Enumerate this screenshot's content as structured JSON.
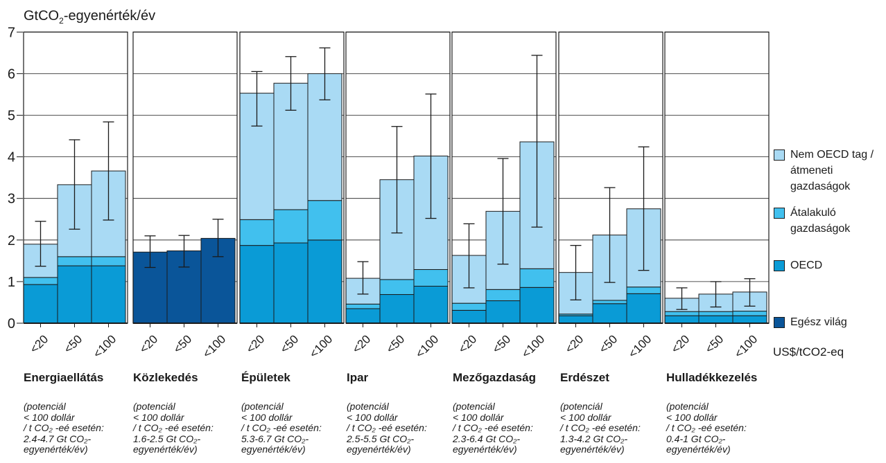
{
  "chart_data": {
    "type": "bar",
    "stacked": true,
    "y_axis_title": "GtCO₂-egyenérték/év",
    "ylim": [
      0,
      7
    ],
    "y_ticks": [
      0,
      1,
      2,
      3,
      4,
      5,
      6,
      7
    ],
    "x_unit_label": "US$/tCO2-eq",
    "categories": [
      "<20",
      "<50",
      "<100"
    ],
    "grid": true,
    "legend_position": "right",
    "legend": [
      {
        "key": "nonoecd",
        "label": "Nem OECD tag / átmeneti gazdaságok",
        "color": "#a9daf4"
      },
      {
        "key": "eit",
        "label": "Átalakuló gazdaságok",
        "color": "#41c0ee"
      },
      {
        "key": "oecd",
        "label": "OECD",
        "color": "#0a9bd6"
      },
      {
        "key": "world",
        "label": "Egész világ",
        "color": "#0a5599"
      }
    ],
    "sectors": [
      {
        "name": "Energiaellátás",
        "note": "(potenciál\n< 100 dollár\n/ t CO₂ -eé esetén:\n2.4-4.7 Gt CO₂-\negyenérték/év)",
        "bars": [
          {
            "category": "<20",
            "oecd": 0.93,
            "eit": 0.17,
            "nonoecd": 0.8,
            "err": [
              1.37,
              2.45
            ]
          },
          {
            "category": "<50",
            "oecd": 1.38,
            "eit": 0.22,
            "nonoecd": 1.73,
            "err": [
              2.26,
              4.41
            ]
          },
          {
            "category": "<100",
            "oecd": 1.38,
            "eit": 0.22,
            "nonoecd": 2.06,
            "err": [
              2.48,
              4.84
            ]
          }
        ]
      },
      {
        "name": "Közlekedés",
        "note": "(potenciál\n< 100 dollár\n/ t CO₂ -eé esetén:\n1.6-2.5 Gt CO₂-\negyenérték/év)",
        "bars": [
          {
            "category": "<20",
            "world": 1.71,
            "err": [
              1.34,
              2.1
            ]
          },
          {
            "category": "<50",
            "world": 1.74,
            "err": [
              1.35,
              2.11
            ]
          },
          {
            "category": "<100",
            "world": 2.04,
            "err": [
              1.6,
              2.5
            ]
          }
        ]
      },
      {
        "name": "Épületek",
        "note": "(potenciál\n< 100 dollár\n/ t CO₂ -eé esetén:\n5.3-6.7 Gt CO₂-\negyenérték/év)",
        "bars": [
          {
            "category": "<20",
            "oecd": 1.87,
            "eit": 0.62,
            "nonoecd": 3.04,
            "err": [
              4.74,
              6.05
            ]
          },
          {
            "category": "<50",
            "oecd": 1.93,
            "eit": 0.8,
            "nonoecd": 3.04,
            "err": [
              5.12,
              6.41
            ]
          },
          {
            "category": "<100",
            "oecd": 2.0,
            "eit": 0.95,
            "nonoecd": 3.05,
            "err": [
              5.37,
              6.62
            ]
          }
        ]
      },
      {
        "name": "Ipar",
        "note": "(potenciál\n< 100 dollár\n/ t CO₂ -eé esetén:\n2.5-5.5 Gt CO₂-\negyenérték/év)",
        "bars": [
          {
            "category": "<20",
            "oecd": 0.35,
            "eit": 0.11,
            "nonoecd": 0.62,
            "err": [
              0.7,
              1.48
            ]
          },
          {
            "category": "<50",
            "oecd": 0.69,
            "eit": 0.36,
            "nonoecd": 2.4,
            "err": [
              2.17,
              4.73
            ]
          },
          {
            "category": "<100",
            "oecd": 0.89,
            "eit": 0.4,
            "nonoecd": 2.73,
            "err": [
              2.52,
              5.51
            ]
          }
        ]
      },
      {
        "name": "Mezőgazdaság",
        "note": "(potenciál\n< 100 dollár\n/ t CO₂ -eé esetén:\n2.3-6.4 Gt CO₂-\negyenérték/év)",
        "bars": [
          {
            "category": "<20",
            "oecd": 0.31,
            "eit": 0.17,
            "nonoecd": 1.15,
            "err": [
              0.85,
              2.39
            ]
          },
          {
            "category": "<50",
            "oecd": 0.54,
            "eit": 0.27,
            "nonoecd": 1.88,
            "err": [
              1.42,
              3.96
            ]
          },
          {
            "category": "<100",
            "oecd": 0.86,
            "eit": 0.45,
            "nonoecd": 3.05,
            "err": [
              2.31,
              6.44
            ]
          }
        ]
      },
      {
        "name": "Erdészet",
        "note": "(potenciál\n< 100 dollár\n/ t CO₂ -eé esetén:\n1.3-4.2 Gt CO₂-\negyenérték/év)",
        "bars": [
          {
            "category": "<20",
            "oecd": 0.18,
            "eit": 0.04,
            "nonoecd": 1.0,
            "err": [
              0.56,
              1.87
            ]
          },
          {
            "category": "<50",
            "oecd": 0.47,
            "eit": 0.08,
            "nonoecd": 1.57,
            "err": [
              0.98,
              3.26
            ]
          },
          {
            "category": "<100",
            "oecd": 0.71,
            "eit": 0.16,
            "nonoecd": 1.88,
            "err": [
              1.27,
              4.24
            ]
          }
        ]
      },
      {
        "name": "Hulladékkezelés",
        "note": "(potenciál\n< 100 dollár\n/ t CO₂ -eé esetén:\n0.4-1 Gt CO₂-\negyenérték/év)",
        "bars": [
          {
            "category": "<20",
            "oecd": 0.18,
            "eit": 0.1,
            "nonoecd": 0.32,
            "err": [
              0.33,
              0.85
            ]
          },
          {
            "category": "<50",
            "oecd": 0.18,
            "eit": 0.1,
            "nonoecd": 0.42,
            "err": [
              0.39,
              1.0
            ]
          },
          {
            "category": "<100",
            "oecd": 0.18,
            "eit": 0.11,
            "nonoecd": 0.46,
            "err": [
              0.41,
              1.07
            ]
          }
        ]
      }
    ]
  }
}
